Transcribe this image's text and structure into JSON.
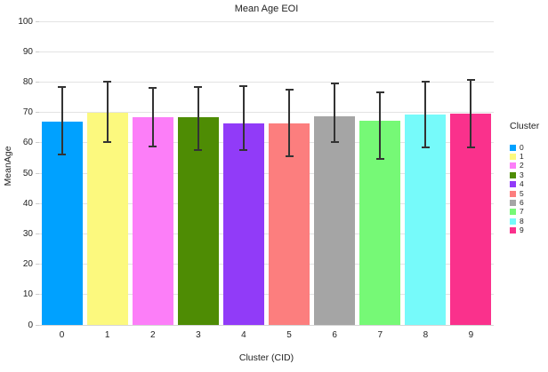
{
  "chart_data": {
    "type": "bar",
    "title": "Mean Age EOI",
    "xlabel": "Cluster (CID)",
    "ylabel": "MeanAge",
    "legend_title": "Cluster",
    "legend_position": "right",
    "grid": true,
    "background": "#ffffff",
    "gridline_color": "#e3e3e3",
    "error_bar_color": "#333333",
    "ylim": [
      0,
      100
    ],
    "yticks": [
      0,
      10,
      20,
      30,
      40,
      50,
      60,
      70,
      80,
      90,
      100
    ],
    "categories": [
      "0",
      "1",
      "2",
      "3",
      "4",
      "5",
      "6",
      "7",
      "8",
      "9"
    ],
    "series": [
      {
        "name": "MeanAge",
        "values": [
          67.0,
          70.0,
          68.4,
          68.3,
          66.4,
          66.4,
          68.8,
          67.4,
          69.2,
          69.6
        ],
        "error_high": [
          78.4,
          80.1,
          78.1,
          78.5,
          78.7,
          77.4,
          79.5,
          76.6,
          80.1,
          80.7
        ],
        "error_low": [
          56.0,
          60.2,
          58.9,
          57.6,
          57.6,
          55.5,
          60.3,
          54.7,
          58.4,
          58.6
        ]
      }
    ],
    "colors": [
      "#00A1FF",
      "#FCF97E",
      "#FC7EF8",
      "#4E8C04",
      "#913BF8",
      "#FC7E7E",
      "#A5A5A5",
      "#76F976",
      "#76FAFA",
      "#FA318C"
    ],
    "legend_entries": [
      "0",
      "1",
      "2",
      "3",
      "4",
      "5",
      "6",
      "7",
      "8",
      "9"
    ]
  }
}
